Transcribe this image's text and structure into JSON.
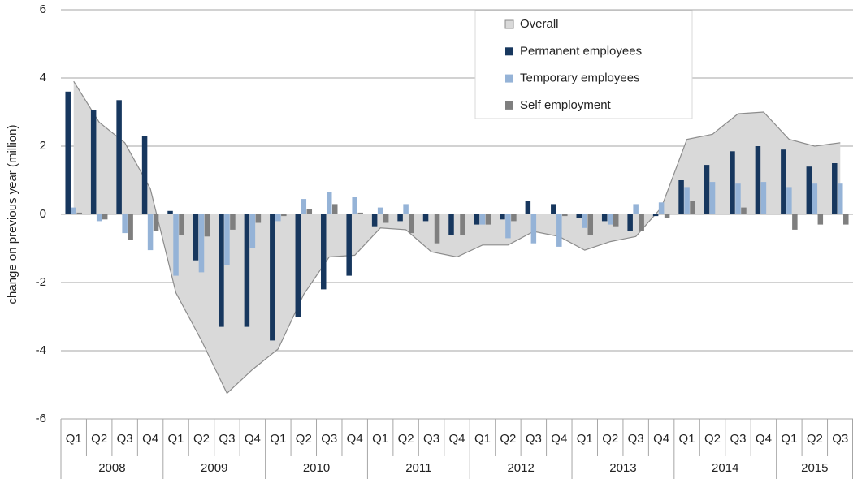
{
  "chart_data": {
    "type": "bar",
    "y_label": "change on previous year (million)",
    "groups": [
      {
        "label": "2008",
        "categories": [
          "Q1",
          "Q2",
          "Q3",
          "Q4"
        ]
      },
      {
        "label": "2009",
        "categories": [
          "Q1",
          "Q2",
          "Q3",
          "Q4"
        ]
      },
      {
        "label": "2010",
        "categories": [
          "Q1",
          "Q2",
          "Q3",
          "Q4"
        ]
      },
      {
        "label": "2011",
        "categories": [
          "Q1",
          "Q2",
          "Q3",
          "Q4"
        ]
      },
      {
        "label": "2012",
        "categories": [
          "Q1",
          "Q2",
          "Q3",
          "Q4"
        ]
      },
      {
        "label": "2013",
        "categories": [
          "Q1",
          "Q2",
          "Q3",
          "Q4"
        ]
      },
      {
        "label": "2014",
        "categories": [
          "Q1",
          "Q2",
          "Q3",
          "Q4"
        ]
      },
      {
        "label": "2015",
        "categories": [
          "Q1",
          "Q2",
          "Q3"
        ]
      }
    ],
    "series": [
      {
        "name": "Overall",
        "type": "area",
        "color": "#d9d9d9",
        "stroke": "#8c8c8c",
        "values": [
          3.9,
          2.7,
          2.1,
          0.75,
          -2.3,
          -3.7,
          -5.25,
          -4.55,
          -3.95,
          -2.35,
          -1.25,
          -1.2,
          -0.4,
          -0.45,
          -1.1,
          -1.25,
          -0.9,
          -0.9,
          -0.5,
          -0.65,
          -1.05,
          -0.8,
          -0.65,
          0.2,
          2.2,
          2.35,
          2.95,
          3.0,
          2.2,
          2.0,
          2.1
        ]
      },
      {
        "name": "Permanent employees",
        "color": "#17375e",
        "values": [
          3.6,
          3.05,
          3.35,
          2.3,
          0.1,
          -1.35,
          -3.3,
          -3.3,
          -3.7,
          -3.0,
          -2.2,
          -1.8,
          -0.35,
          -0.2,
          -0.2,
          -0.6,
          -0.3,
          -0.15,
          0.4,
          0.3,
          -0.1,
          -0.2,
          -0.5,
          -0.05,
          1.0,
          1.45,
          1.85,
          2.0,
          1.9,
          1.4,
          1.5
        ]
      },
      {
        "name": "Temporary employees",
        "color": "#95b3d7",
        "values": [
          0.2,
          -0.2,
          -0.55,
          -1.05,
          -1.8,
          -1.7,
          -1.5,
          -1.0,
          -0.2,
          0.45,
          0.65,
          0.5,
          0.2,
          0.3,
          0,
          0,
          -0.3,
          -0.7,
          -0.85,
          -0.95,
          -0.4,
          -0.3,
          0.3,
          0.35,
          0.8,
          0.95,
          0.9,
          0.95,
          0.8,
          0.9,
          0.9
        ]
      },
      {
        "name": "Self employment",
        "color": "#7f7f7f",
        "values": [
          0.05,
          -0.15,
          -0.75,
          -0.5,
          -0.6,
          -0.65,
          -0.45,
          -0.25,
          -0.05,
          0.15,
          0.3,
          0.05,
          -0.25,
          -0.55,
          -0.85,
          -0.6,
          -0.3,
          -0.2,
          0,
          -0.05,
          -0.6,
          -0.35,
          -0.5,
          -0.1,
          0.4,
          0,
          0.2,
          0,
          -0.45,
          -0.3,
          -0.3
        ]
      }
    ],
    "ylim": [
      -6,
      6
    ],
    "yticks": [
      -6,
      -4,
      -2,
      0,
      2,
      4,
      6
    ],
    "grid": true
  }
}
